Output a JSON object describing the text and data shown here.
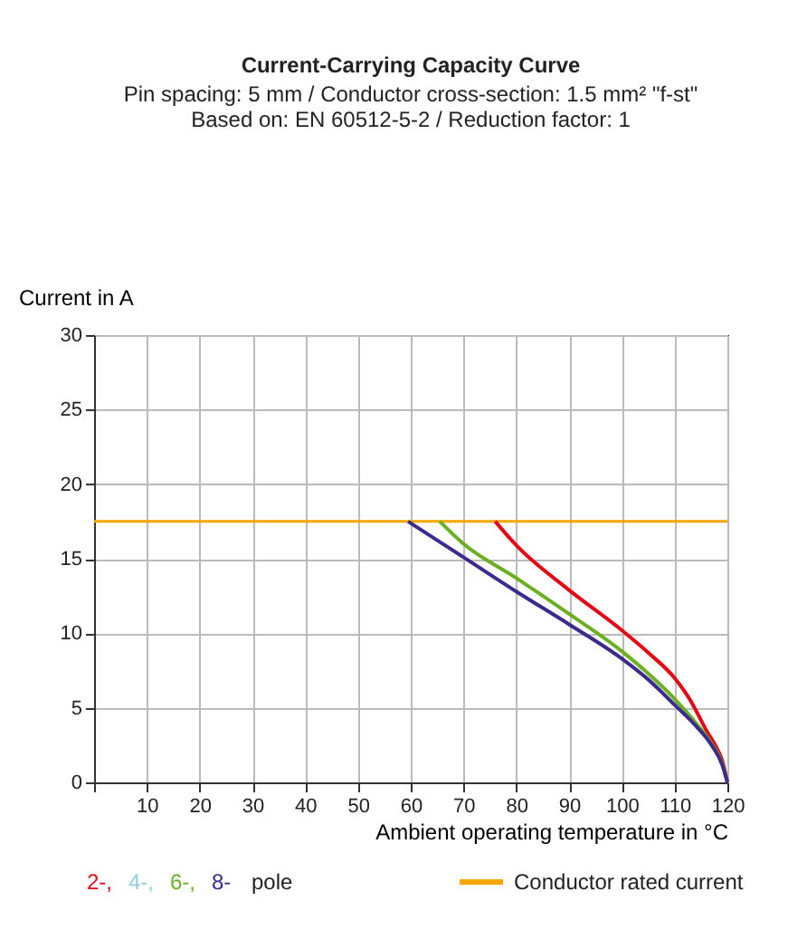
{
  "chart_data": {
    "type": "line",
    "title": "Current-Carrying Capacity Curve",
    "subtitle": "Pin spacing: 5 mm / Conductor cross-section: 1.5 mm² \"f-st\"\nBased on: EN 60512-5-2 / Reduction factor: 1",
    "xlabel": "Ambient operating temperature in °C",
    "ylabel": "Current in A",
    "legend_title": "pole",
    "xlim": [
      0,
      120
    ],
    "ylim": [
      0,
      30
    ],
    "xticks": [
      {
        "value": 0,
        "label": null
      },
      10,
      20,
      30,
      40,
      50,
      60,
      70,
      80,
      90,
      100,
      110,
      120
    ],
    "yticks": [
      0,
      5,
      10,
      15,
      20,
      25,
      30
    ],
    "grid": true,
    "legend": "bottom",
    "line_style": "solid",
    "marker": "none",
    "series": [
      {
        "name": "2-,",
        "color": "#e30613",
        "x": [
          76,
          80,
          90,
          100,
          105,
          110,
          113,
          116,
          118,
          119,
          120
        ],
        "values": [
          17.5,
          15.9,
          12.9,
          10.2,
          8.7,
          7.0,
          5.5,
          3.5,
          2.3,
          1.5,
          0
        ]
      },
      {
        "name": "4-,",
        "color": "#8fd0d8"
      },
      {
        "name": "6-,",
        "color": "#6ab023",
        "x": [
          65.5,
          70,
          80,
          90,
          100,
          105,
          110,
          114,
          117,
          119,
          120
        ],
        "values": [
          17.5,
          16.0,
          13.7,
          11.3,
          8.8,
          7.3,
          5.6,
          4.0,
          2.6,
          1.3,
          0
        ]
      },
      {
        "name": "8-",
        "color": "#3c2a8c",
        "x": [
          59.5,
          70,
          80,
          90,
          100,
          105,
          110,
          114,
          117,
          119,
          120
        ],
        "values": [
          17.5,
          15.1,
          12.8,
          10.6,
          8.3,
          6.9,
          5.2,
          3.8,
          2.5,
          1.2,
          0
        ]
      }
    ],
    "ref_lines": [
      {
        "axis": "y",
        "value": 17.5,
        "label": "Conductor rated current",
        "color": "#f7a600",
        "line_style": "solid"
      }
    ]
  }
}
